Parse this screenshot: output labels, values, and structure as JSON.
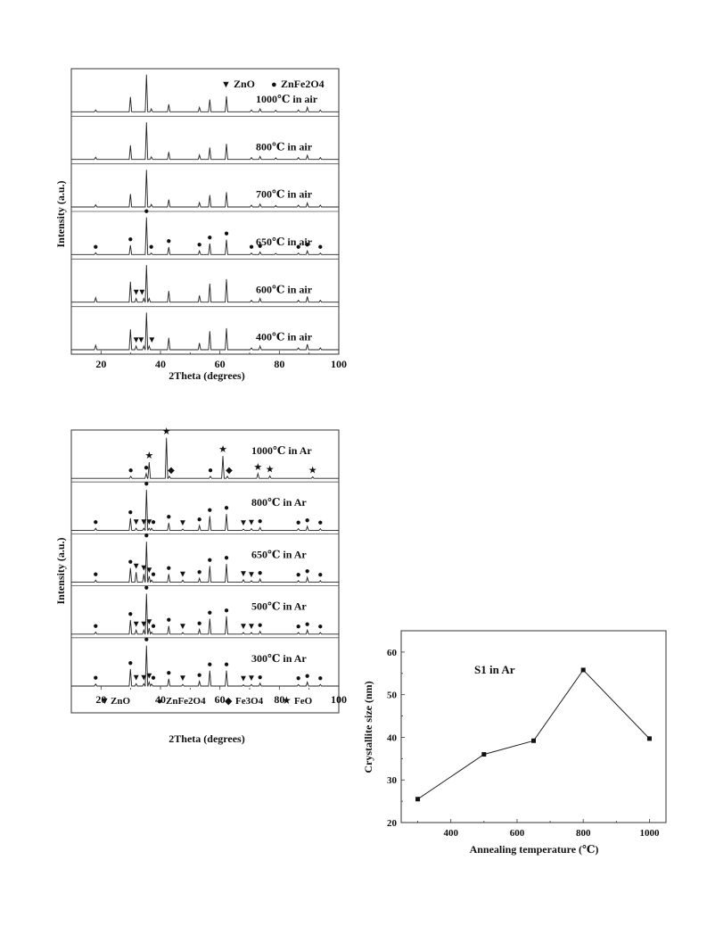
{
  "figure_air": {
    "legend": {
      "zno": "ZnO",
      "znfe2o4": "ZnFe2O4"
    },
    "xlabel": "2Theta (degrees)",
    "ylabel": "Intensity (a.u.)",
    "x_ticks": [
      "20",
      "40",
      "60",
      "80",
      "100"
    ],
    "panels": [
      {
        "label": "1000℃ in air"
      },
      {
        "label": "800℃ in air"
      },
      {
        "label": "700℃ in air"
      },
      {
        "label": "650℃ in air"
      },
      {
        "label": "600℃ in air"
      },
      {
        "label": "400℃ in air"
      }
    ]
  },
  "figure_ar": {
    "legend": {
      "zno": "ZnO",
      "znfe2o4": "ZnFe2O4",
      "fe3o4": "Fe3O4",
      "feo": "FeO"
    },
    "xlabel": "2Theta (degrees)",
    "ylabel": "Intensity (a.u.)",
    "x_ticks": [
      "20",
      "40",
      "60",
      "80",
      "100"
    ],
    "panels": [
      {
        "label": "1000℃  in Ar"
      },
      {
        "label": "800℃  in Ar"
      },
      {
        "label": "650℃  in Ar"
      },
      {
        "label": "500℃  in Ar"
      },
      {
        "label": "300℃  in Ar"
      }
    ]
  },
  "figure_size": {
    "annotation": "S1 in Ar",
    "xlabel": "Annealing temperature (℃)",
    "ylabel": "Crystallite size (nm)",
    "x_ticks": [
      "400",
      "600",
      "800",
      "1000"
    ],
    "y_ticks": [
      "20",
      "30",
      "40",
      "50",
      "60"
    ]
  },
  "chart_data": [
    {
      "type": "line",
      "title": "",
      "xlabel": "2Theta (degrees)",
      "ylabel": "Intensity (a.u.)",
      "xlim": [
        10,
        100
      ],
      "legend": [
        "ZnO",
        "ZnFe2O4"
      ],
      "series": [
        {
          "name": "1000℃ in air",
          "x": [
            18.2,
            29.9,
            35.3,
            36.9,
            42.8,
            53.1,
            56.6,
            62.2,
            70.6,
            73.5,
            78.8,
            86.4,
            89.4,
            93.8
          ],
          "values": [
            0.05,
            0.4,
            1.0,
            0.08,
            0.2,
            0.12,
            0.33,
            0.42,
            0.05,
            0.08,
            0.04,
            0.05,
            0.12,
            0.05
          ]
        },
        {
          "name": "800℃ in air",
          "x": [
            18.2,
            29.9,
            35.3,
            36.9,
            42.8,
            53.1,
            56.6,
            62.2,
            70.6,
            73.5,
            78.8,
            86.4,
            89.4,
            93.8
          ],
          "values": [
            0.06,
            0.38,
            1.0,
            0.07,
            0.2,
            0.12,
            0.32,
            0.42,
            0.05,
            0.08,
            0.04,
            0.05,
            0.11,
            0.05
          ]
        },
        {
          "name": "700℃ in air",
          "x": [
            18.2,
            29.9,
            35.3,
            36.9,
            42.8,
            53.1,
            56.6,
            62.2,
            70.6,
            73.5,
            78.8,
            86.4,
            89.4,
            93.8
          ],
          "values": [
            0.06,
            0.35,
            1.0,
            0.07,
            0.2,
            0.12,
            0.32,
            0.4,
            0.05,
            0.08,
            0.04,
            0.05,
            0.11,
            0.05
          ]
        },
        {
          "name": "650℃ in air",
          "x": [
            18.2,
            29.9,
            35.3,
            36.9,
            42.8,
            53.1,
            56.6,
            62.2,
            70.6,
            73.5,
            78.8,
            86.4,
            89.4,
            93.8
          ],
          "values": [
            0.05,
            0.25,
            1.0,
            0.04,
            0.2,
            0.1,
            0.3,
            0.4,
            0.04,
            0.07,
            0.03,
            0.04,
            0.1,
            0.04
          ]
        },
        {
          "name": "600℃ in air",
          "x": [
            18.2,
            29.9,
            31.8,
            34.4,
            35.3,
            36.2,
            42.8,
            53.1,
            56.6,
            62.2,
            70.6,
            73.5,
            86.4,
            89.4,
            93.8
          ],
          "values": [
            0.12,
            0.55,
            0.1,
            0.1,
            1.0,
            0.1,
            0.3,
            0.18,
            0.5,
            0.62,
            0.05,
            0.1,
            0.05,
            0.15,
            0.05
          ]
        },
        {
          "name": "400℃ in air",
          "x": [
            18.2,
            29.9,
            31.8,
            34.4,
            35.3,
            36.2,
            42.8,
            53.1,
            56.6,
            62.2,
            70.6,
            73.5,
            86.4,
            89.4,
            93.8
          ],
          "values": [
            0.12,
            0.55,
            0.1,
            0.1,
            1.0,
            0.1,
            0.32,
            0.18,
            0.5,
            0.58,
            0.05,
            0.1,
            0.05,
            0.15,
            0.05
          ]
        }
      ]
    },
    {
      "type": "line",
      "title": "",
      "xlabel": "2Theta (degrees)",
      "ylabel": "Intensity (a.u.)",
      "xlim": [
        10,
        100
      ],
      "legend": [
        "ZnO",
        "ZnFe2O4",
        "Fe3O4",
        "FeO"
      ],
      "series": [
        {
          "name": "1000℃  in Ar",
          "x": [
            30.0,
            35.2,
            36.2,
            42.0,
            43.0,
            56.8,
            61.0,
            62.5,
            72.8,
            76.8,
            91.2
          ],
          "values": [
            0.05,
            0.12,
            0.4,
            1.0,
            0.05,
            0.05,
            0.55,
            0.05,
            0.12,
            0.06,
            0.04
          ]
        },
        {
          "name": "800℃  in Ar",
          "x": [
            18.2,
            29.9,
            31.8,
            34.4,
            35.3,
            36.2,
            37.0,
            42.8,
            47.5,
            53.1,
            56.6,
            62.2,
            67.9,
            70.6,
            73.5,
            86.4,
            89.4,
            93.8
          ],
          "values": [
            0.05,
            0.3,
            0.05,
            0.05,
            1.0,
            0.05,
            0.05,
            0.18,
            0.03,
            0.12,
            0.35,
            0.4,
            0.03,
            0.04,
            0.07,
            0.04,
            0.1,
            0.04
          ]
        },
        {
          "name": "650℃  in Ar",
          "x": [
            18.2,
            29.9,
            31.8,
            34.4,
            35.3,
            36.2,
            37.0,
            42.8,
            47.5,
            53.1,
            56.6,
            62.2,
            67.9,
            70.6,
            73.5,
            86.4,
            89.4,
            93.8
          ],
          "values": [
            0.05,
            0.35,
            0.25,
            0.2,
            1.0,
            0.15,
            0.05,
            0.2,
            0.05,
            0.1,
            0.4,
            0.45,
            0.06,
            0.04,
            0.08,
            0.04,
            0.12,
            0.04
          ]
        },
        {
          "name": "500℃  in Ar",
          "x": [
            18.2,
            29.9,
            31.8,
            34.4,
            35.3,
            36.2,
            37.0,
            42.8,
            47.5,
            53.1,
            56.6,
            62.2,
            67.9,
            70.6,
            73.5,
            86.4,
            89.4,
            93.8
          ],
          "values": [
            0.05,
            0.35,
            0.1,
            0.1,
            1.0,
            0.15,
            0.05,
            0.2,
            0.04,
            0.12,
            0.38,
            0.44,
            0.04,
            0.04,
            0.07,
            0.04,
            0.1,
            0.04
          ]
        },
        {
          "name": "300℃  in Ar",
          "x": [
            18.2,
            29.9,
            31.8,
            34.4,
            35.3,
            36.2,
            37.0,
            42.8,
            47.5,
            53.1,
            56.6,
            62.2,
            67.9,
            70.6,
            73.5,
            86.4,
            89.4,
            93.8
          ],
          "values": [
            0.05,
            0.42,
            0.06,
            0.06,
            1.0,
            0.1,
            0.05,
            0.18,
            0.04,
            0.12,
            0.38,
            0.38,
            0.03,
            0.04,
            0.07,
            0.04,
            0.1,
            0.04
          ]
        }
      ]
    },
    {
      "type": "line",
      "title": "",
      "annotation": "S1 in Ar",
      "xlabel": "Annealing temperature (℃)",
      "ylabel": "Crystallite size (nm)",
      "xlim": [
        250,
        1050
      ],
      "ylim": [
        20,
        65
      ],
      "grid": false,
      "series": [
        {
          "name": "",
          "x": [
            300,
            500,
            650,
            800,
            1000
          ],
          "values": [
            25.5,
            36.0,
            39.2,
            55.8,
            39.7
          ]
        }
      ]
    }
  ]
}
